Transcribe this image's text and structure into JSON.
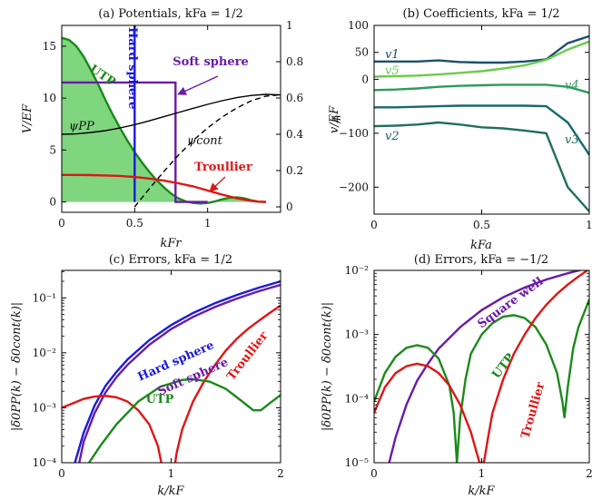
{
  "chart_data": [
    {
      "id": "a",
      "type": "line",
      "title": "(a) Potentials, kFa = 1/2",
      "xlabel": "kFr",
      "ylabel": "V/EF",
      "ylabel2": "ψ",
      "xlim": [
        0,
        1.5
      ],
      "ylim": [
        -1,
        17
      ],
      "y2lim": [
        -0.03,
        1.0
      ],
      "xticks": [
        {
          "v": 0,
          "t": "0"
        },
        {
          "v": 0.5,
          "t": "0.5"
        },
        {
          "v": 1,
          "t": "1"
        }
      ],
      "yticks": [
        {
          "v": 0,
          "t": "0"
        },
        {
          "v": 5,
          "t": "5"
        },
        {
          "v": 10,
          "t": "10"
        },
        {
          "v": 15,
          "t": "15"
        }
      ],
      "y2ticks": [
        {
          "v": 0,
          "t": "0"
        },
        {
          "v": 0.2,
          "t": "0.2"
        },
        {
          "v": 0.4,
          "t": "0.4"
        },
        {
          "v": 0.6,
          "t": "0.6"
        },
        {
          "v": 0.8,
          "t": "0.8"
        },
        {
          "v": 1,
          "t": "1"
        }
      ],
      "series": [
        {
          "name": "UTP",
          "color": "#1a8a1a",
          "fill": "#7fd67f",
          "axis": "left",
          "x": [
            0,
            0.05,
            0.1,
            0.15,
            0.2,
            0.25,
            0.3,
            0.35,
            0.4,
            0.45,
            0.5,
            0.55,
            0.6,
            0.65,
            0.7,
            0.75,
            0.8,
            0.85,
            0.9,
            0.95,
            1.0,
            1.05,
            1.1,
            1.15,
            1.2,
            1.25,
            1.3,
            1.35,
            1.4
          ],
          "y": [
            15.8,
            15.6,
            15.0,
            14.0,
            12.7,
            11.3,
            9.8,
            8.4,
            7.1,
            5.9,
            4.8,
            3.8,
            2.9,
            2.1,
            1.4,
            0.8,
            0.35,
            0.05,
            -0.1,
            -0.15,
            -0.1,
            0.05,
            0.25,
            0.4,
            0.45,
            0.35,
            0.15,
            0.02,
            0.0
          ]
        },
        {
          "name": "Hard sphere",
          "color": "#1a1adf",
          "axis": "left",
          "x": [
            0.5,
            0.5
          ],
          "y": [
            17,
            0
          ]
        },
        {
          "name": "Soft sphere",
          "color": "#6a1aa8",
          "axis": "left",
          "x": [
            0,
            0.78,
            0.78,
            1.0
          ],
          "y": [
            11.5,
            11.5,
            0,
            0
          ]
        },
        {
          "name": "Troullier",
          "color": "#e01515",
          "axis": "left",
          "x": [
            0,
            0.1,
            0.2,
            0.3,
            0.4,
            0.5,
            0.6,
            0.7,
            0.8,
            0.9,
            1.0,
            1.1,
            1.2,
            1.3,
            1.35,
            1.4
          ],
          "y": [
            2.6,
            2.6,
            2.58,
            2.55,
            2.5,
            2.4,
            2.25,
            2.05,
            1.8,
            1.5,
            1.1,
            0.7,
            0.35,
            0.1,
            0.02,
            0.0
          ]
        },
        {
          "name": "ψPP",
          "color": "#000000",
          "axis": "right",
          "x": [
            0,
            0.1,
            0.2,
            0.3,
            0.4,
            0.5,
            0.6,
            0.7,
            0.8,
            0.9,
            1.0,
            1.1,
            1.2,
            1.3,
            1.4,
            1.5
          ],
          "y": [
            0.4,
            0.402,
            0.41,
            0.42,
            0.435,
            0.453,
            0.474,
            0.497,
            0.52,
            0.543,
            0.565,
            0.585,
            0.602,
            0.614,
            0.62,
            0.617
          ]
        },
        {
          "name": "ψcont",
          "color": "#000000",
          "dash": true,
          "axis": "right",
          "x": [
            0.5,
            0.6,
            0.7,
            0.8,
            0.9,
            1.0,
            1.1,
            1.2,
            1.3,
            1.4,
            1.5
          ],
          "y": [
            0.0,
            0.1,
            0.195,
            0.285,
            0.365,
            0.435,
            0.495,
            0.545,
            0.585,
            0.61,
            0.618
          ]
        }
      ],
      "annotations": [
        "UTP",
        "Hard sphere",
        "Soft sphere",
        "ψPP",
        "ψcont",
        "Troullier"
      ]
    },
    {
      "id": "b",
      "type": "line",
      "title": "(b) Coefficients, kFa = 1/2",
      "xlabel": "kFa",
      "ylabel": "v/EF",
      "xlim": [
        0,
        1
      ],
      "ylim": [
        -250,
        100
      ],
      "xticks": [
        {
          "v": 0,
          "t": "0"
        },
        {
          "v": 0.5,
          "t": "0.5"
        },
        {
          "v": 1,
          "t": "1"
        }
      ],
      "yticks": [
        {
          "v": -200,
          "t": "−200"
        },
        {
          "v": -100,
          "t": "−100"
        },
        {
          "v": 0,
          "t": "0"
        },
        {
          "v": 50,
          "t": "50"
        },
        {
          "v": 100,
          "t": "100"
        }
      ],
      "series": [
        {
          "name": "v1",
          "color": "#1b4f6e",
          "x": [
            0,
            0.1,
            0.2,
            0.3,
            0.4,
            0.5,
            0.6,
            0.7,
            0.8,
            0.9,
            1.0
          ],
          "y": [
            33,
            33,
            33,
            35,
            32,
            31,
            31,
            33,
            37,
            67,
            80
          ]
        },
        {
          "name": "v5",
          "color": "#6acb4a",
          "x": [
            0,
            0.1,
            0.2,
            0.3,
            0.4,
            0.5,
            0.6,
            0.7,
            0.8,
            0.9,
            1.0
          ],
          "y": [
            5,
            6,
            7,
            9,
            12,
            15,
            20,
            26,
            36,
            55,
            70
          ]
        },
        {
          "name": "v4",
          "color": "#2f9a5c",
          "x": [
            0,
            0.1,
            0.2,
            0.3,
            0.4,
            0.5,
            0.6,
            0.7,
            0.8,
            0.9,
            1.0
          ],
          "y": [
            -20,
            -19,
            -17,
            -14,
            -12,
            -11,
            -10,
            -10,
            -10,
            -14,
            -25
          ]
        },
        {
          "name": "v2",
          "color": "#166a6a",
          "x": [
            0,
            0.1,
            0.2,
            0.3,
            0.4,
            0.5,
            0.6,
            0.7,
            0.8,
            0.9,
            1.0
          ],
          "y": [
            -52,
            -52,
            -51,
            -50,
            -49,
            -49,
            -49,
            -49,
            -50,
            -80,
            -140
          ]
        },
        {
          "name": "v3",
          "color": "#236e5e",
          "x": [
            0,
            0.1,
            0.2,
            0.3,
            0.4,
            0.5,
            0.6,
            0.7,
            0.8,
            0.9,
            1.0
          ],
          "y": [
            -87,
            -86,
            -84,
            -80,
            -84,
            -89,
            -91,
            -95,
            -100,
            -200,
            -245
          ]
        }
      ],
      "annotations": [
        "v1",
        "v5",
        "v4",
        "v2",
        "v3"
      ]
    },
    {
      "id": "c",
      "type": "line",
      "title": "(c) Errors, kFa = 1/2",
      "xlabel": "k/kF",
      "ylabel": "|δ0PP(k) − δ0cont(k)|",
      "xlim": [
        0,
        2
      ],
      "ylim_log": [
        -4,
        -0.5
      ],
      "xticks": [
        {
          "v": 0,
          "t": "0"
        },
        {
          "v": 1,
          "t": "1"
        },
        {
          "v": 2,
          "t": "2"
        }
      ],
      "yticks": [
        {
          "v": -4,
          "t": "10⁻⁴"
        },
        {
          "v": -3,
          "t": "10⁻³"
        },
        {
          "v": -2,
          "t": "10⁻²"
        },
        {
          "v": -1,
          "t": "10⁻¹"
        }
      ],
      "series": [
        {
          "name": "Hard sphere",
          "color": "#1a1adf",
          "x": [
            0.12,
            0.2,
            0.3,
            0.4,
            0.5,
            0.6,
            0.8,
            1.0,
            1.2,
            1.4,
            1.6,
            1.8,
            2.0
          ],
          "y": [
            0.0001,
            0.00035,
            0.0011,
            0.0025,
            0.0045,
            0.0075,
            0.017,
            0.032,
            0.053,
            0.08,
            0.113,
            0.153,
            0.2
          ]
        },
        {
          "name": "Soft sphere",
          "color": "#6a1aa8",
          "x": [
            0.16,
            0.2,
            0.3,
            0.4,
            0.5,
            0.6,
            0.8,
            1.0,
            1.2,
            1.4,
            1.6,
            1.8,
            2.0
          ],
          "y": [
            0.0001,
            0.00024,
            0.0008,
            0.0019,
            0.0036,
            0.006,
            0.014,
            0.027,
            0.045,
            0.068,
            0.097,
            0.132,
            0.172
          ]
        },
        {
          "name": "Troullier",
          "color": "#e01515",
          "x": [
            0,
            0.1,
            0.2,
            0.3,
            0.4,
            0.5,
            0.6,
            0.7,
            0.8,
            0.88,
            0.94,
            0.97,
            1.0,
            1.05,
            1.1,
            1.2,
            1.3,
            1.4,
            1.5,
            1.6,
            1.7,
            1.8,
            1.9,
            2.0
          ],
          "y": [
            0.001,
            0.0012,
            0.00145,
            0.0016,
            0.00165,
            0.00155,
            0.0013,
            0.0009,
            0.0005,
            0.0002,
            5e-05,
            1e-05,
            3e-05,
            0.00015,
            0.0004,
            0.0013,
            0.003,
            0.006,
            0.011,
            0.018,
            0.027,
            0.038,
            0.053,
            0.072
          ]
        },
        {
          "name": "UTP",
          "color": "#1a8a1a",
          "x": [
            0.25,
            0.35,
            0.5,
            0.7,
            0.9,
            1.1,
            1.2,
            1.35,
            1.5,
            1.65,
            1.75,
            1.82,
            1.9,
            2.0
          ],
          "y": [
            0.0001,
            0.0002,
            0.0005,
            0.0013,
            0.0024,
            0.0032,
            0.0033,
            0.003,
            0.0022,
            0.0013,
            0.0009,
            0.0009,
            0.0012,
            0.0017
          ]
        }
      ],
      "annotations": [
        "Hard sphere",
        "Soft sphere",
        "Troullier",
        "UTP"
      ]
    },
    {
      "id": "d",
      "type": "line",
      "title": "(d) Errors, kFa = −1/2",
      "xlabel": "k/kF",
      "ylabel": "|δ0PP(k) − δ0cont(k)|",
      "xlim": [
        0,
        2
      ],
      "ylim_log": [
        -5,
        -2
      ],
      "xticks": [
        {
          "v": 0,
          "t": "0"
        },
        {
          "v": 1,
          "t": "1"
        },
        {
          "v": 2,
          "t": "2"
        }
      ],
      "yticks": [
        {
          "v": -5,
          "t": "10⁻⁵"
        },
        {
          "v": -4,
          "t": "10⁻⁴"
        },
        {
          "v": -3,
          "t": "10⁻³"
        },
        {
          "v": -2,
          "t": "10⁻²"
        }
      ],
      "series": [
        {
          "name": "Square well",
          "color": "#6a1aa8",
          "x": [
            0.14,
            0.2,
            0.3,
            0.4,
            0.5,
            0.6,
            0.8,
            1.0,
            1.2,
            1.4,
            1.6,
            1.8,
            2.0
          ],
          "y": [
            1e-05,
            2.5e-05,
            8e-05,
            0.00019,
            0.00035,
            0.0006,
            0.0013,
            0.0024,
            0.0038,
            0.0054,
            0.0072,
            0.009,
            0.011
          ]
        },
        {
          "name": "UTP",
          "color": "#1a8a1a",
          "x": [
            0,
            0.1,
            0.2,
            0.3,
            0.4,
            0.5,
            0.6,
            0.7,
            0.74,
            0.77,
            0.8,
            0.85,
            0.9,
            1.0,
            1.1,
            1.2,
            1.3,
            1.4,
            1.5,
            1.6,
            1.7,
            1.75,
            1.77,
            1.8,
            1.85,
            1.9,
            2.0
          ],
          "y": [
            9e-05,
            0.00025,
            0.00045,
            0.00062,
            0.00068,
            0.00062,
            0.00042,
            0.00016,
            6e-05,
            1e-05,
            5e-05,
            0.0002,
            0.0005,
            0.001,
            0.0015,
            0.0019,
            0.002,
            0.0018,
            0.0013,
            0.0007,
            0.00025,
            9e-05,
            5e-05,
            0.00015,
            0.0006,
            0.0013,
            0.0035
          ]
        },
        {
          "name": "Troullier",
          "color": "#e01515",
          "x": [
            0,
            0.1,
            0.2,
            0.3,
            0.4,
            0.5,
            0.6,
            0.7,
            0.8,
            0.9,
            0.98,
            1.02,
            1.06,
            1.1,
            1.2,
            1.3,
            1.4,
            1.5,
            1.6,
            1.7,
            1.8,
            1.9,
            2.0
          ],
          "y": [
            6e-05,
            0.00015,
            0.00025,
            0.00032,
            0.00035,
            0.00032,
            0.00025,
            0.00016,
            8e-05,
            3e-05,
            1e-05,
            1e-05,
            2.5e-05,
            6e-05,
            0.0002,
            0.0005,
            0.001,
            0.0018,
            0.0029,
            0.0043,
            0.006,
            0.008,
            0.0105
          ]
        }
      ],
      "annotations": [
        "Square well",
        "UTP",
        "Troullier"
      ]
    }
  ]
}
